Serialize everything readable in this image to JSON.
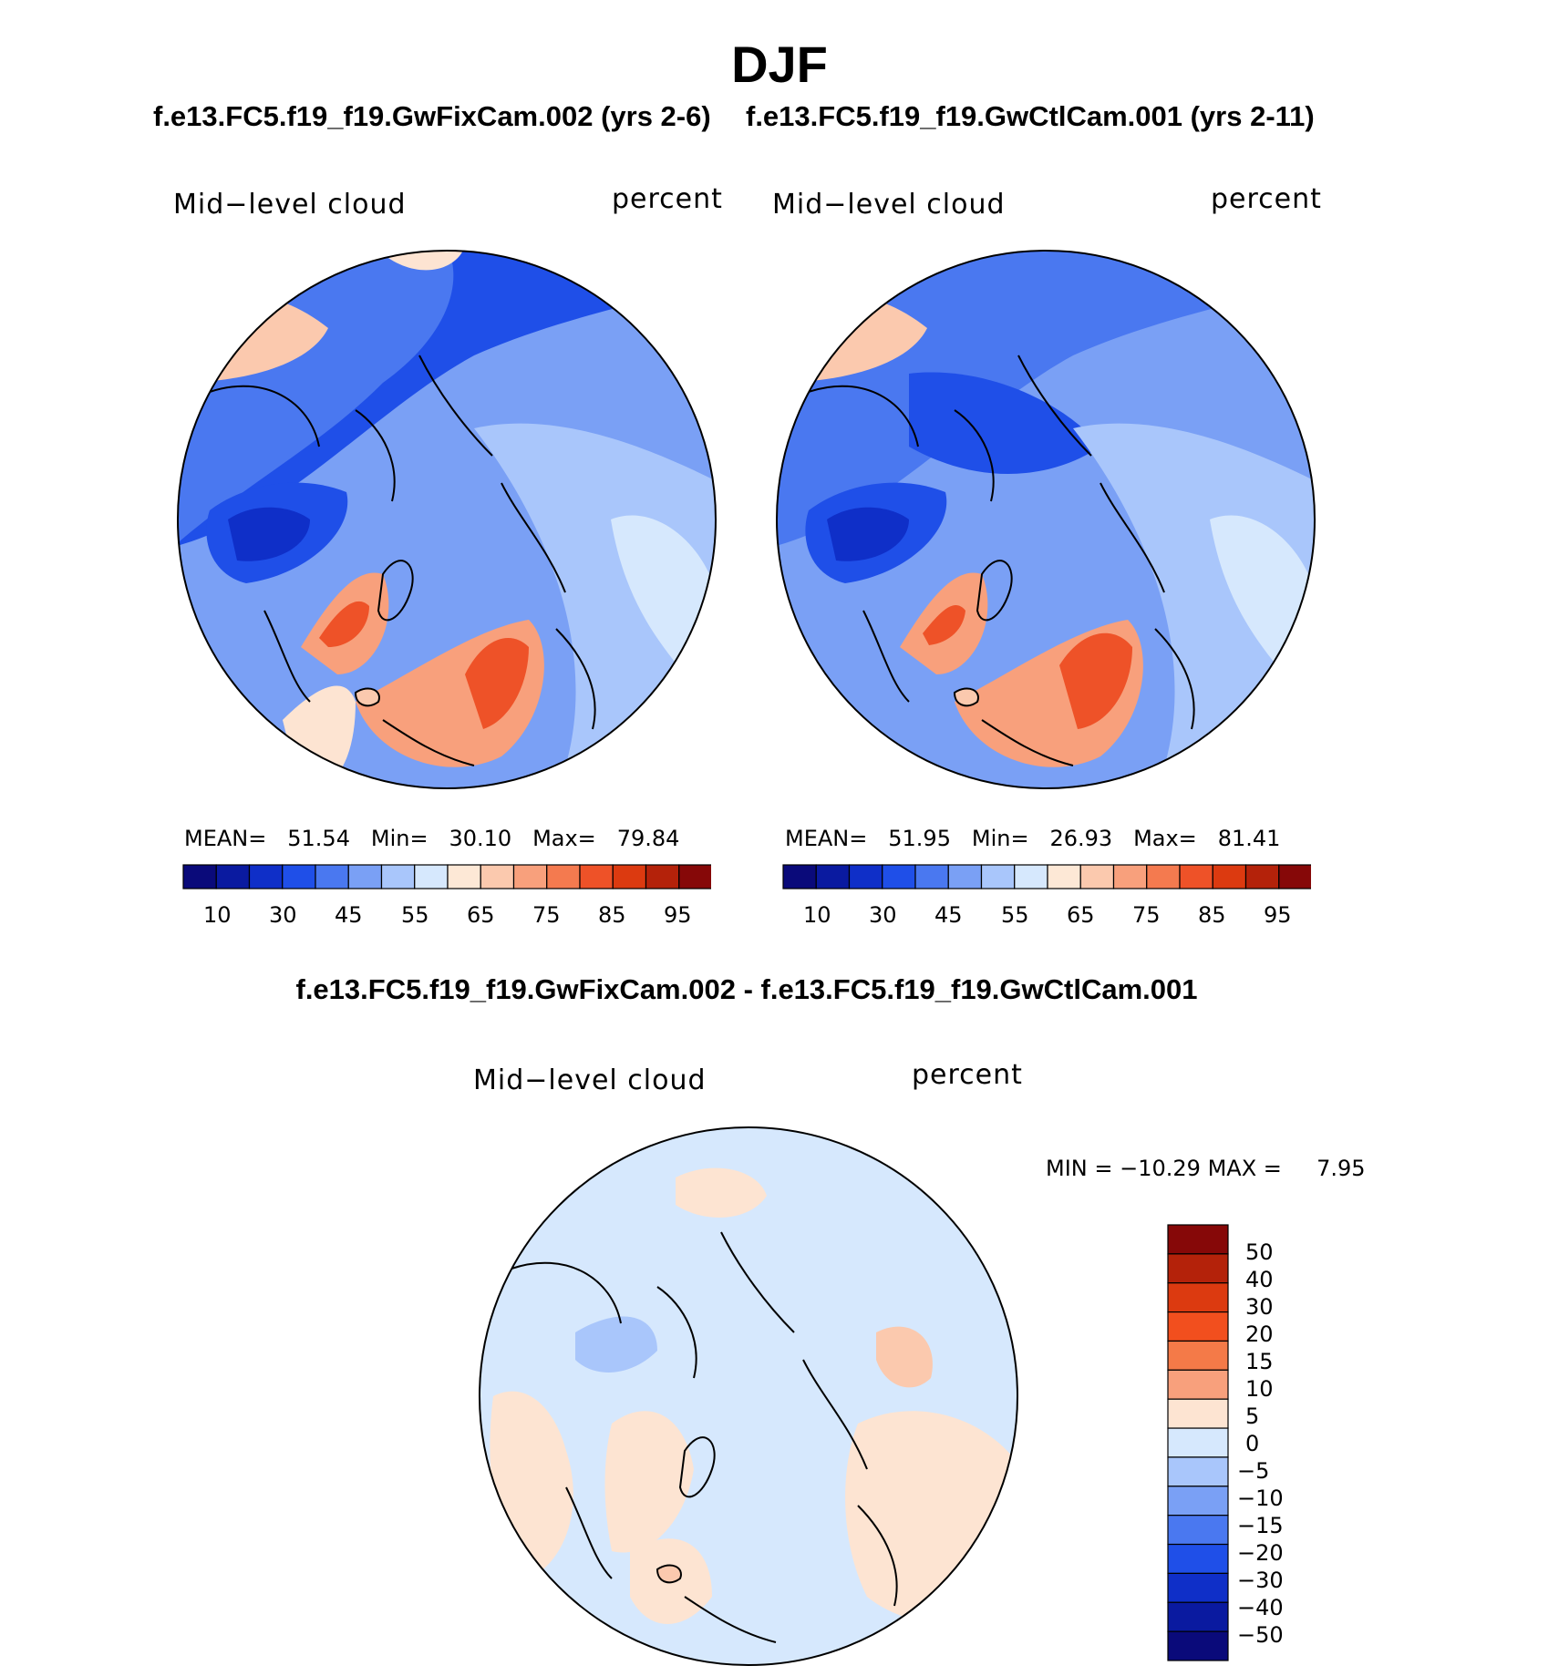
{
  "figure": {
    "title": "DJF",
    "panels": [
      {
        "case_title": "f.e13.FC5.f19_f19.GwFixCam.002 (yrs 2-6)",
        "variable": "Mid−level cloud",
        "units": "percent",
        "stats": {
          "mean_label": "MEAN=",
          "mean": "51.54",
          "min_label": "Min=",
          "min": "30.10",
          "max_label": "Max=",
          "max": "79.84"
        }
      },
      {
        "case_title": "f.e13.FC5.f19_f19.GwCtlCam.001 (yrs 2-11)",
        "variable": "Mid−level cloud",
        "units": "percent",
        "stats": {
          "mean_label": "MEAN=",
          "mean": "51.95",
          "min_label": "Min=",
          "min": "26.93",
          "max_label": "Max=",
          "max": "81.41"
        }
      }
    ],
    "difference": {
      "title": "f.e13.FC5.f19_f19.GwFixCam.002 - f.e13.FC5.f19_f19.GwCtlCam.001",
      "variable": "Mid−level cloud",
      "units": "percent",
      "stats": {
        "min_label": "MIN =",
        "min": "−10.29",
        "max_label": "MAX =",
        "max": "7.95"
      }
    },
    "colorbar_main": {
      "colors": [
        "#0a0a7a",
        "#0a1aa0",
        "#0f2fc8",
        "#1f4fe8",
        "#4a78f0",
        "#7aa0f5",
        "#a9c6fb",
        "#d6e8fd",
        "#fde8d6",
        "#fbc9ae",
        "#f8a07c",
        "#f47a4f",
        "#ee5228",
        "#dc3a10",
        "#b4220a",
        "#860808"
      ],
      "labels": [
        "10",
        "30",
        "45",
        "55",
        "65",
        "75",
        "85",
        "95"
      ]
    },
    "colorbar_diff": {
      "colors": [
        "#860808",
        "#b4220a",
        "#dc3a10",
        "#f24f1e",
        "#f47a48",
        "#f8a07c",
        "#fde4d2",
        "#d6e8fd",
        "#a9c6fb",
        "#7aa0f5",
        "#4a78f0",
        "#1f4fe8",
        "#0f2fc8",
        "#0a1aa0",
        "#0a0a7a"
      ],
      "labels": [
        "50",
        "40",
        "30",
        "20",
        "15",
        "10",
        "5",
        "0",
        "−5",
        "−10",
        "−15",
        "−20",
        "−30",
        "−40",
        "−50"
      ]
    },
    "map_colors": {
      "background": "#7aa0f5",
      "dark_blue": "#1f4fe8",
      "mid_blue": "#4a78f0",
      "light_blue": "#a9c6fb",
      "pale_blue": "#d6e8fd",
      "pale_orange": "#fde4d2",
      "light_orange": "#fbc9ae",
      "orange": "#f8a07c",
      "red_orange": "#ee5228"
    }
  }
}
